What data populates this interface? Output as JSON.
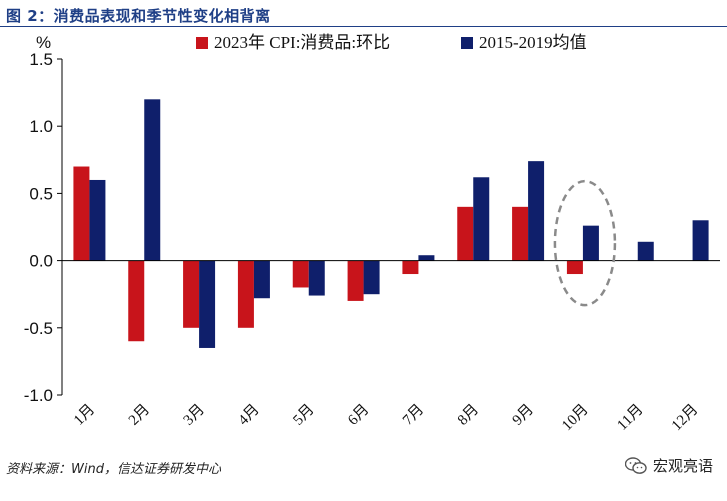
{
  "figure_title": "图 2：消费品表现和季节性变化相背离",
  "source_note": "资料来源：Wind，信达证券研发中心",
  "brand": {
    "name": "宏观亮语",
    "icon": "wechat-icon"
  },
  "colors": {
    "series_2023": "#c8141b",
    "series_avg": "#0f1f6b",
    "axis": "#000000",
    "highlight": "#8a8a8a",
    "title": "#1f3f86"
  },
  "chart_data": {
    "type": "bar",
    "ylabel": "%",
    "ylim": [
      -1.0,
      1.5
    ],
    "yticks": [
      "1.5",
      "1.0",
      "0.5",
      "0.0",
      "-0.5",
      "-1.0"
    ],
    "ytick_values": [
      1.5,
      1.0,
      0.5,
      0.0,
      -0.5,
      -1.0
    ],
    "grid": false,
    "legend_position": "top",
    "categories": [
      "1月",
      "2月",
      "3月",
      "4月",
      "5月",
      "6月",
      "7月",
      "8月",
      "9月",
      "10月",
      "11月",
      "12月"
    ],
    "series": [
      {
        "name": "2023年 CPI:消费品:环比",
        "values": [
          0.7,
          -0.6,
          -0.5,
          -0.5,
          -0.2,
          -0.3,
          -0.1,
          0.4,
          0.4,
          -0.1,
          null,
          null
        ]
      },
      {
        "name": "2015-2019均值",
        "values": [
          0.6,
          1.2,
          -0.65,
          -0.28,
          -0.26,
          -0.25,
          0.04,
          0.62,
          0.74,
          0.26,
          0.14,
          0.3
        ]
      }
    ],
    "annotation": {
      "type": "dashed-ellipse",
      "target_category": "10月"
    }
  }
}
